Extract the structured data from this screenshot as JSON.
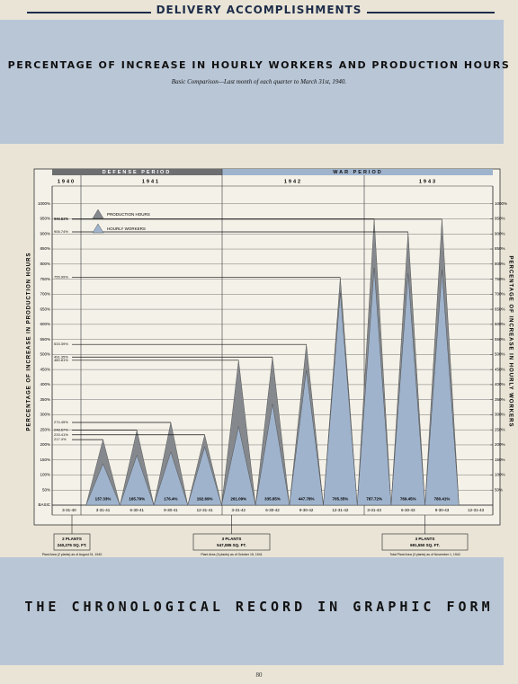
{
  "header": "DELIVERY ACCOMPLISHMENTS",
  "footer": "THE CHRONOLOGICAL RECORD IN GRAPHIC FORM",
  "page_number": "80",
  "chart_data": {
    "type": "spike",
    "title": "PERCENTAGE OF INCREASE IN HOURLY WORKERS AND PRODUCTION HOURS",
    "subtitle": "Basic Comparison—Last month of each quarter to March 31st, 1940.",
    "y_label": "PERCENTAGE OF INCREASE IN PRODUCTION HOURS",
    "y2_label": "PERCENTAGE OF INCREASE IN HOURLY WORKERS",
    "periods": [
      "DEFENSE PERIOD",
      "WAR PERIOD"
    ],
    "years": [
      "1940",
      "1941",
      "1942",
      "1943"
    ],
    "categories": [
      "3-31-40",
      "3-31-41",
      "6-30-41",
      "9-30-41",
      "12-31-41",
      "3-31-42",
      "6-30-42",
      "9-30-42",
      "12-31-42",
      "3-31-43",
      "6-30-43",
      "9-30-43",
      "12-31-43"
    ],
    "series": [
      {
        "name": "PRODUCTION HOURS",
        "color": "#85898d",
        "values": [
          null,
          217.4,
          248.57,
          274.45,
          233.41,
          480.81,
          491.35,
          533.39,
          755.99,
          949.61,
          906.74,
          948.84,
          null
        ],
        "value_labels": [
          null,
          "217.4%",
          "248.57%",
          "274.45%",
          "233.41%",
          "480.81%",
          "491.35%",
          "533.39%",
          "755.99%",
          "949.61%",
          "906.74%",
          "948.84%",
          null
        ]
      },
      {
        "name": "HOURLY WORKERS",
        "color": "#9fb3cc",
        "axis": "y2",
        "values": [
          null,
          137.33,
          165.79,
          176.4,
          192.69,
          261.09,
          335.85,
          447.78,
          705.35,
          787.72,
          769.45,
          780.41,
          null
        ],
        "value_labels": [
          null,
          "137.33%",
          "165.79%",
          "176.4%",
          "192.69%",
          "261.09%",
          "335.85%",
          "447.78%",
          "705.35%",
          "787.72%",
          "769.45%",
          "780.41%",
          null
        ]
      }
    ],
    "ylim": [
      0,
      1050
    ],
    "yticks": [
      {
        "value": 0,
        "label": "BASIC"
      },
      {
        "value": 50,
        "label": "50%"
      },
      {
        "value": 100,
        "label": "100%"
      },
      {
        "value": 150,
        "label": "150%"
      },
      {
        "value": 200,
        "label": "200%"
      },
      {
        "value": 250,
        "label": "250%"
      },
      {
        "value": 300,
        "label": "300%"
      },
      {
        "value": 350,
        "label": "350%"
      },
      {
        "value": 400,
        "label": "400%"
      },
      {
        "value": 450,
        "label": "450%"
      },
      {
        "value": 500,
        "label": "500%"
      },
      {
        "value": 550,
        "label": "550%"
      },
      {
        "value": 600,
        "label": "600%"
      },
      {
        "value": 650,
        "label": "650%"
      },
      {
        "value": 700,
        "label": "700%"
      },
      {
        "value": 750,
        "label": "750%"
      },
      {
        "value": 800,
        "label": "800%"
      },
      {
        "value": 850,
        "label": "850%"
      },
      {
        "value": 900,
        "label": "900%"
      },
      {
        "value": 950,
        "label": "950%"
      },
      {
        "value": 1000,
        "label": "1000%"
      }
    ],
    "y2lim": [
      0,
      1050
    ],
    "y2ticks": [
      {
        "value": 50,
        "label": "50%"
      },
      {
        "value": 100,
        "label": "100%"
      },
      {
        "value": 150,
        "label": "150%"
      },
      {
        "value": 200,
        "label": "200%"
      },
      {
        "value": 250,
        "label": "250%"
      },
      {
        "value": 300,
        "label": "300%"
      },
      {
        "value": 350,
        "label": "350%"
      },
      {
        "value": 400,
        "label": "400%"
      },
      {
        "value": 450,
        "label": "450%"
      },
      {
        "value": 500,
        "label": "500%"
      },
      {
        "value": 550,
        "label": "550%"
      },
      {
        "value": 600,
        "label": "600%"
      },
      {
        "value": 650,
        "label": "650%"
      },
      {
        "value": 700,
        "label": "700%"
      },
      {
        "value": 750,
        "label": "750%"
      },
      {
        "value": 800,
        "label": "800%"
      },
      {
        "value": 850,
        "label": "850%"
      },
      {
        "value": 900,
        "label": "900%"
      },
      {
        "value": 950,
        "label": "950%"
      },
      {
        "value": 1000,
        "label": "1000%"
      }
    ],
    "grid": true,
    "legend": "upper left",
    "annotations": [
      {
        "title": "2 PLANTS",
        "area": "240,275 SQ. FT.",
        "note": "Plant Area (2 plants) as of August 31, 1940"
      },
      {
        "title": "3 PLANTS",
        "area": "547,085 SQ. FT.",
        "note": "Plant Area (3 plants) as of October 15, 1941",
        "note2": "88% of the Expansion in Operation Feb. 1941"
      },
      {
        "title": "3 PLANTS",
        "area": "691,550 SQ. FT.",
        "note": "Total Plant Area (3 plants) as of November 1, 1942"
      }
    ]
  }
}
